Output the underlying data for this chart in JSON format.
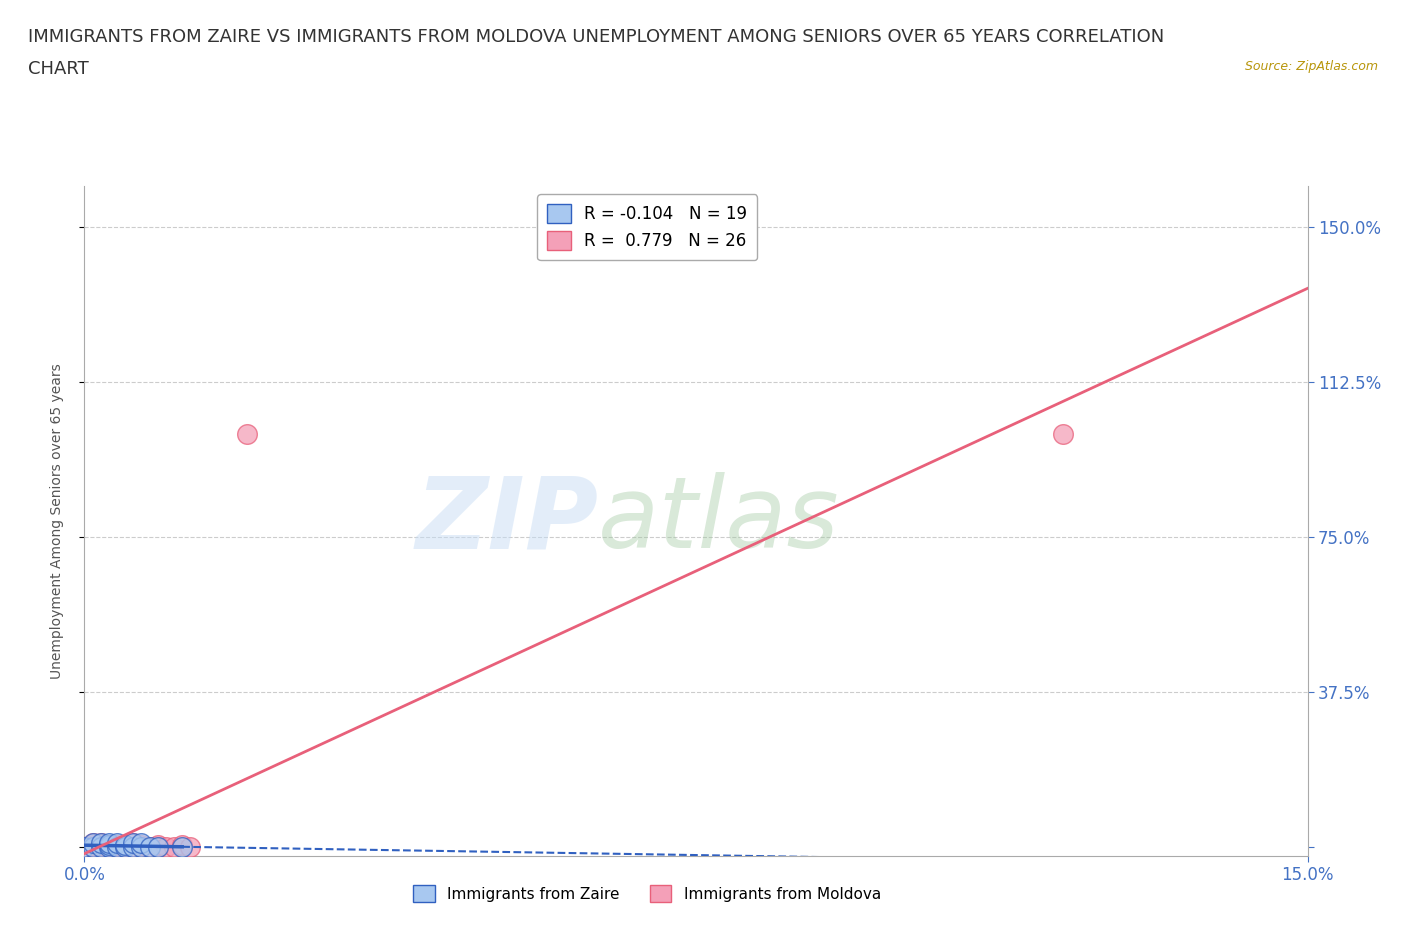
{
  "title_line1": "IMMIGRANTS FROM ZAIRE VS IMMIGRANTS FROM MOLDOVA UNEMPLOYMENT AMONG SENIORS OVER 65 YEARS CORRELATION",
  "title_line2": "CHART",
  "source": "Source: ZipAtlas.com",
  "ylabel": "Unemployment Among Seniors over 65 years",
  "xlim": [
    0.0,
    0.15
  ],
  "ylim": [
    -0.02,
    1.6
  ],
  "xticks": [
    0.0,
    0.15
  ],
  "xticklabels": [
    "0.0%",
    "15.0%"
  ],
  "yticks_right": [
    0.0,
    0.375,
    0.75,
    1.125,
    1.5
  ],
  "yticklabels_right": [
    "",
    "37.5%",
    "75.0%",
    "112.5%",
    "150.0%"
  ],
  "zaire_R": -0.104,
  "zaire_N": 19,
  "moldova_R": 0.779,
  "moldova_N": 26,
  "zaire_color": "#a8c8f0",
  "moldova_color": "#f4a0b8",
  "zaire_line_color": "#3060c0",
  "moldova_line_color": "#e8607a",
  "background_color": "#ffffff",
  "grid_color": "#cccccc",
  "watermark_zip": "ZIP",
  "watermark_atlas": "atlas",
  "title_fontsize": 13,
  "axis_label_fontsize": 10,
  "tick_fontsize": 12,
  "legend_fontsize": 12,
  "zaire_x": [
    0.0,
    0.001,
    0.001,
    0.002,
    0.002,
    0.003,
    0.003,
    0.003,
    0.004,
    0.004,
    0.005,
    0.005,
    0.006,
    0.006,
    0.007,
    0.007,
    0.008,
    0.009,
    0.012
  ],
  "zaire_y": [
    0.0,
    0.0,
    0.01,
    0.0,
    0.01,
    0.0,
    0.005,
    0.01,
    0.0,
    0.01,
    0.0,
    0.005,
    0.0,
    0.01,
    0.0,
    0.01,
    0.0,
    0.0,
    0.0
  ],
  "moldova_x": [
    0.0,
    0.001,
    0.001,
    0.001,
    0.002,
    0.002,
    0.002,
    0.003,
    0.003,
    0.004,
    0.004,
    0.005,
    0.005,
    0.006,
    0.006,
    0.007,
    0.007,
    0.008,
    0.009,
    0.009,
    0.01,
    0.011,
    0.012,
    0.013,
    0.02,
    0.12
  ],
  "moldova_y": [
    0.0,
    0.0,
    0.005,
    0.01,
    0.0,
    0.005,
    0.01,
    0.0,
    0.005,
    0.0,
    0.005,
    0.0,
    0.005,
    0.0,
    0.01,
    0.0,
    0.005,
    0.0,
    0.0,
    0.005,
    0.0,
    0.0,
    0.005,
    0.0,
    1.0,
    1.0
  ]
}
